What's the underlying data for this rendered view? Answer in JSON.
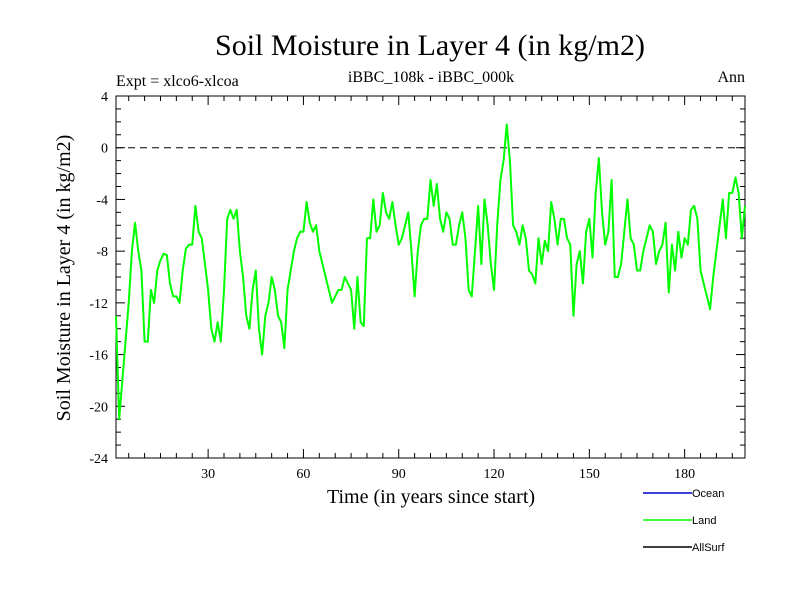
{
  "chart_data": {
    "type": "line",
    "title": "Soil Moisture in Layer 4 (in kg/m2)",
    "subtitle_left": "Expt = xlco6-xlcoa",
    "subtitle_center": "iBBC_108k - iBBC_000k",
    "subtitle_right": "Ann",
    "xlabel": "Time (in years since start)",
    "ylabel": "Soil Moisture in Layer 4 (in kg/m2)",
    "xlim": [
      1,
      199
    ],
    "ylim": [
      -24,
      4
    ],
    "xticks": [
      30,
      60,
      90,
      120,
      150,
      180
    ],
    "yticks": [
      4,
      0,
      -4,
      -8,
      -12,
      -16,
      -20,
      -24
    ],
    "ytick_labels": [
      "4",
      "0",
      "-4",
      "-8",
      "-12",
      "-16",
      "-20",
      "-24"
    ],
    "reference_line": 0,
    "legend": [
      {
        "name": "Ocean",
        "color": "#0000cc"
      },
      {
        "name": "Land",
        "color": "#00ff00"
      },
      {
        "name": "AllSurf",
        "color": "#000000"
      }
    ],
    "series": [
      {
        "name": "Land",
        "color": "#00ff00",
        "x_start": 1,
        "values": [
          -13.0,
          -21.0,
          -18.0,
          -15.0,
          -12.0,
          -8.0,
          -5.8,
          -8.0,
          -9.5,
          -15.0,
          -15.0,
          -11.0,
          -12.0,
          -9.5,
          -8.7,
          -8.2,
          -8.3,
          -10.5,
          -11.5,
          -11.5,
          -12.0,
          -9.5,
          -7.8,
          -7.5,
          -7.5,
          -4.5,
          -6.5,
          -7.0,
          -9.0,
          -11.0,
          -14.0,
          -15.0,
          -13.5,
          -15.0,
          -11.0,
          -5.5,
          -4.8,
          -5.5,
          -4.8,
          -8.0,
          -10.0,
          -13.0,
          -14.0,
          -11.0,
          -9.5,
          -14.0,
          -16.0,
          -13.0,
          -12.0,
          -10.0,
          -11.0,
          -13.0,
          -13.5,
          -15.5,
          -11.0,
          -9.5,
          -8.0,
          -7.0,
          -6.5,
          -6.5,
          -4.2,
          -5.8,
          -6.5,
          -6.0,
          -8.0,
          -9.0,
          -10.0,
          -11.0,
          -12.0,
          -11.5,
          -11.0,
          -11.0,
          -10.0,
          -10.5,
          -11.0,
          -14.0,
          -10.0,
          -13.5,
          -13.8,
          -7.0,
          -7.0,
          -4.0,
          -6.5,
          -6.0,
          -3.5,
          -5.0,
          -5.5,
          -4.2,
          -6.0,
          -7.5,
          -7.0,
          -6.0,
          -5.0,
          -8.0,
          -11.5,
          -8.0,
          -6.0,
          -5.5,
          -5.5,
          -2.5,
          -4.5,
          -2.8,
          -5.5,
          -6.5,
          -5.0,
          -5.5,
          -7.5,
          -7.5,
          -6.0,
          -5.0,
          -7.0,
          -11.0,
          -11.5,
          -8.0,
          -4.5,
          -9.0,
          -4.0,
          -6.0,
          -9.0,
          -11.0,
          -6.0,
          -2.5,
          -1.0,
          1.8,
          -1.0,
          -6.0,
          -6.5,
          -7.5,
          -6.0,
          -7.0,
          -9.5,
          -9.8,
          -10.5,
          -7.0,
          -9.0,
          -7.2,
          -8.0,
          -4.2,
          -5.5,
          -7.5,
          -5.5,
          -5.5,
          -7.0,
          -7.5,
          -13.0,
          -9.0,
          -8.0,
          -10.5,
          -6.5,
          -5.5,
          -8.5,
          -3.5,
          -0.8,
          -5.0,
          -7.5,
          -6.5,
          -2.5,
          -10.0,
          -10.0,
          -9.0,
          -6.5,
          -4.0,
          -7.0,
          -7.5,
          -9.5,
          -9.5,
          -8.0,
          -7.0,
          -6.0,
          -6.5,
          -9.0,
          -8.0,
          -7.5,
          -5.8,
          -11.2,
          -7.5,
          -9.5,
          -6.5,
          -8.5,
          -7.0,
          -7.5,
          -4.8,
          -4.5,
          -5.5,
          -9.5,
          -10.5,
          -11.5,
          -12.5,
          -10.0,
          -8.0,
          -6.0,
          -4.0,
          -7.0,
          -3.5,
          -3.5,
          -2.3,
          -3.5,
          -7.0,
          -4.5
        ]
      }
    ]
  }
}
